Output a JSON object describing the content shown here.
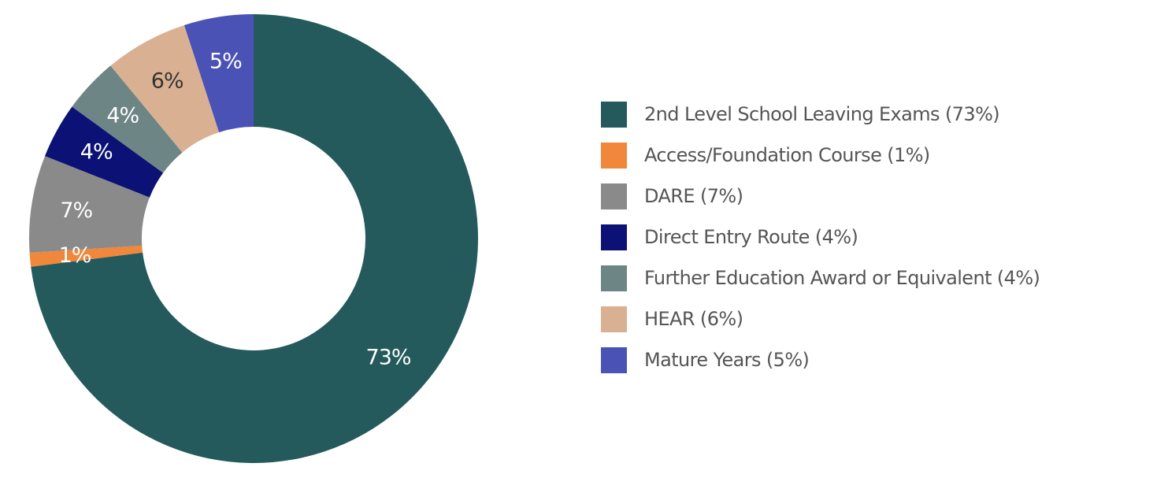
{
  "chart_data": {
    "type": "pie",
    "variant": "donut",
    "start": "top, clockwise",
    "legend_position": "right",
    "series": [
      {
        "name": "2nd Level School Leaving Exams",
        "value": 73,
        "label": "73%",
        "legend_label": "2nd Level School Leaving Exams (73%)",
        "color": "#245a5c",
        "label_color": "#ffffff"
      },
      {
        "name": "Access/Foundation Course",
        "value": 1,
        "label": "1%",
        "legend_label": "Access/Foundation Course (1%)",
        "color": "#f0873a",
        "label_color": "#ffffff"
      },
      {
        "name": "DARE",
        "value": 7,
        "label": "7%",
        "legend_label": "DARE (7%)",
        "color": "#8a8a8a",
        "label_color": "#ffffff"
      },
      {
        "name": "Direct Entry Route",
        "value": 4,
        "label": "4%",
        "legend_label": "Direct Entry Route (4%)",
        "color": "#0c1275",
        "label_color": "#ffffff"
      },
      {
        "name": "Further Education Award or Equivalent",
        "value": 4,
        "label": "4%",
        "legend_label": "Further Education Award or Equivalent (4%)",
        "color": "#6d8585",
        "label_color": "#ffffff"
      },
      {
        "name": "HEAR",
        "value": 6,
        "label": "6%",
        "legend_label": "HEAR (6%)",
        "color": "#d9b192",
        "label_color": "#333333"
      },
      {
        "name": "Mature Years",
        "value": 5,
        "label": "5%",
        "legend_label": "Mature Years (5%)",
        "color": "#4b52b5",
        "label_color": "#ffffff"
      }
    ]
  }
}
